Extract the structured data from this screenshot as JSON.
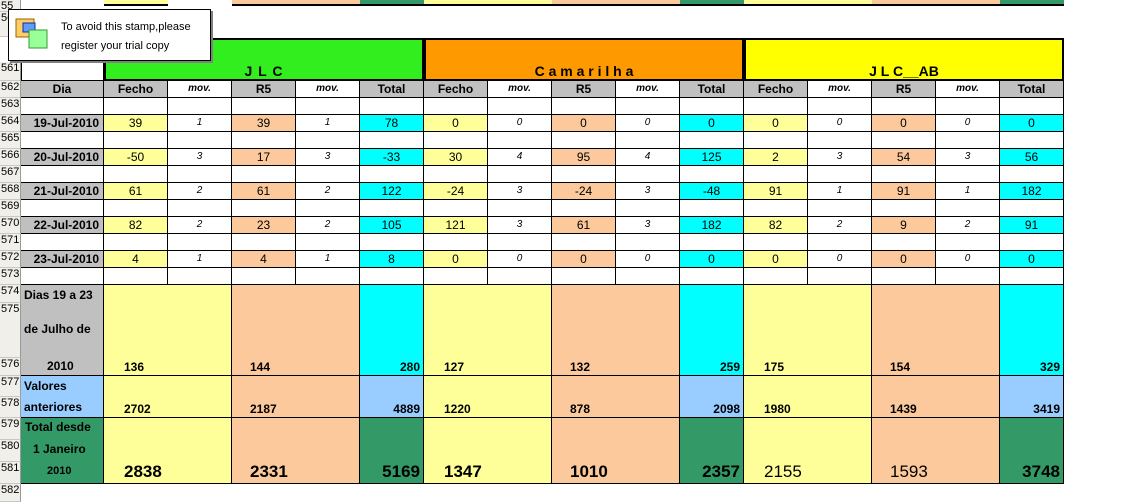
{
  "stamp": {
    "line1": "To avoid this stamp,please",
    "line2": "register your trial copy"
  },
  "row_numbers": [
    "55",
    "56",
    "561",
    "562",
    "563",
    "564",
    "565",
    "566",
    "567",
    "568",
    "569",
    "570",
    "571",
    "572",
    "573",
    "574",
    "575",
    "576",
    "577",
    "578",
    "579",
    "580",
    "581",
    "582"
  ],
  "groups": [
    {
      "name": "J  L  C",
      "color": "#33ee1e"
    },
    {
      "name": "C a m a r i l h a",
      "color": "#ff9900"
    },
    {
      "name": "J L C__AB",
      "color": "#ffff00"
    }
  ],
  "headers": {
    "dia": "Dia",
    "fecho": "Fecho",
    "mov": "mov.",
    "r5": "R5",
    "total": "Total"
  },
  "rows": [
    {
      "date": "19-Jul-2010",
      "values": [
        [
          "39",
          "1",
          "39",
          "1",
          "78"
        ],
        [
          "0",
          "0",
          "0",
          "0",
          "0"
        ],
        [
          "0",
          "0",
          "0",
          "0",
          "0"
        ]
      ]
    },
    {
      "date": "20-Jul-2010",
      "values": [
        [
          "-50",
          "3",
          "17",
          "3",
          "-33"
        ],
        [
          "30",
          "4",
          "95",
          "4",
          "125"
        ],
        [
          "2",
          "3",
          "54",
          "3",
          "56"
        ]
      ]
    },
    {
      "date": "21-Jul-2010",
      "values": [
        [
          "61",
          "2",
          "61",
          "2",
          "122"
        ],
        [
          "-24",
          "3",
          "-24",
          "3",
          "-48"
        ],
        [
          "91",
          "1",
          "91",
          "1",
          "182"
        ]
      ]
    },
    {
      "date": "22-Jul-2010",
      "values": [
        [
          "82",
          "2",
          "23",
          "2",
          "105"
        ],
        [
          "121",
          "3",
          "61",
          "3",
          "182"
        ],
        [
          "82",
          "2",
          "9",
          "2",
          "91"
        ]
      ]
    },
    {
      "date": "23-Jul-2010",
      "values": [
        [
          "4",
          "1",
          "4",
          "1",
          "8"
        ],
        [
          "0",
          "0",
          "0",
          "0",
          "0"
        ],
        [
          "0",
          "0",
          "0",
          "0",
          "0"
        ]
      ]
    }
  ],
  "summary_dias": {
    "label1": "Dias 19 a 23",
    "label2": "de Julho de",
    "label3": "2010",
    "values": [
      [
        "136",
        "144",
        "280"
      ],
      [
        "127",
        "132",
        "259"
      ],
      [
        "175",
        "154",
        "329"
      ]
    ]
  },
  "summary_anteriores": {
    "label1": "Valores",
    "label2": "anteriores",
    "values": [
      [
        "2702",
        "2187",
        "4889"
      ],
      [
        "1220",
        "878",
        "2098"
      ],
      [
        "1980",
        "1439",
        "3419"
      ]
    ]
  },
  "summary_total": {
    "label1": "Total desde",
    "label2": "1 Janeiro",
    "label3": "2010",
    "values": [
      [
        "2838",
        "2331",
        "5169"
      ],
      [
        "1347",
        "1010",
        "2357"
      ],
      [
        "2155",
        "1593",
        "3748"
      ]
    ]
  },
  "colors": {
    "yellow_cell": "#ffff99",
    "peach_cell": "#fcc99c",
    "cyan_total": "#00ffff",
    "blue_prev": "#99ccff",
    "green_total": "#339966",
    "gray_header": "#c0c0c0"
  }
}
